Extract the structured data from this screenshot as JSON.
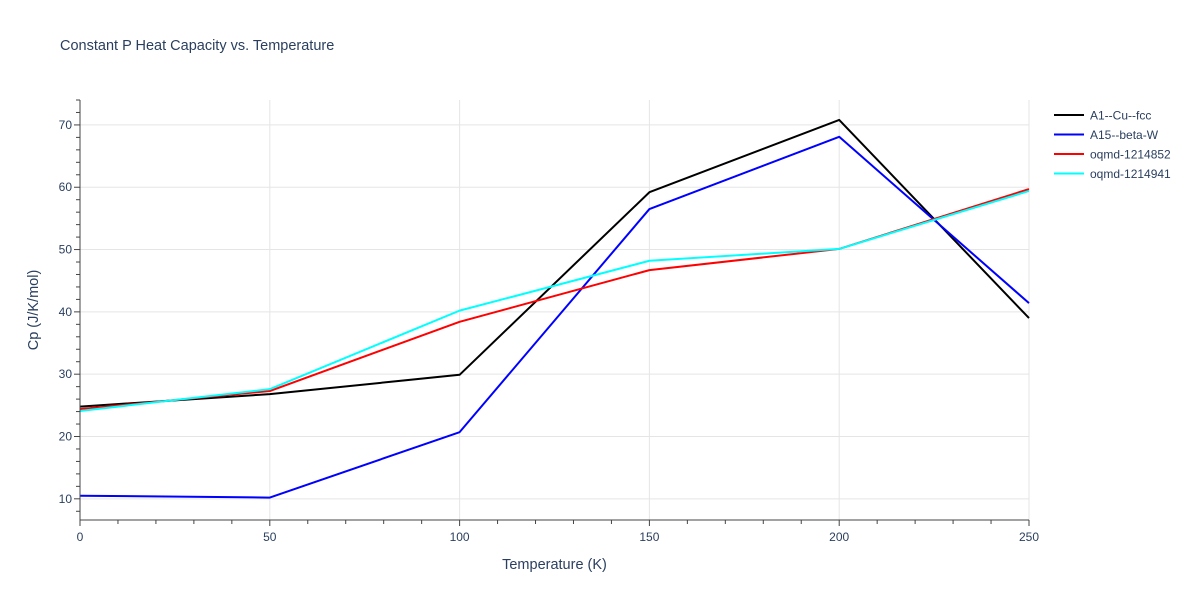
{
  "chart_data": {
    "type": "line",
    "title": "Constant P Heat Capacity vs. Temperature",
    "xlabel": "Temperature (K)",
    "ylabel": "Cp (J/K/mol)",
    "xlim": [
      0,
      250
    ],
    "ylim": [
      6.6,
      74
    ],
    "xticks": [
      0,
      50,
      100,
      150,
      200,
      250
    ],
    "yticks": [
      10,
      20,
      30,
      40,
      50,
      60,
      70
    ],
    "grid": true,
    "legend_placement": "top-right outside",
    "x": [
      0,
      50,
      100,
      150,
      200,
      250
    ],
    "series": [
      {
        "name": "A1--Cu--fcc",
        "color": "#000000",
        "values": [
          24.8,
          26.8,
          29.9,
          59.2,
          70.8,
          39.0
        ]
      },
      {
        "name": "A15--beta-W",
        "color": "#0000ff",
        "values": [
          10.5,
          10.2,
          20.7,
          56.5,
          68.1,
          41.4
        ]
      },
      {
        "name": "oqmd-1214852",
        "color": "#ff0000",
        "values": [
          24.4,
          27.3,
          38.4,
          46.7,
          50.1,
          59.7
        ]
      },
      {
        "name": "oqmd-1214941",
        "color": "#00ffff",
        "values": [
          24.1,
          27.6,
          40.2,
          48.2,
          50.1,
          59.4
        ]
      }
    ]
  }
}
